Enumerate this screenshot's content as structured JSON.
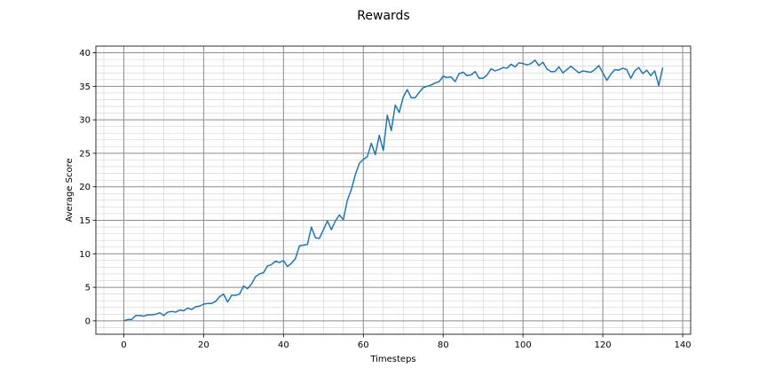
{
  "chart_data": {
    "type": "line",
    "title": "Rewards",
    "xlabel": "Timesteps",
    "ylabel": "Average Score",
    "xlim": [
      -7,
      142
    ],
    "ylim": [
      -2,
      41
    ],
    "x_ticks": [
      0,
      20,
      40,
      60,
      80,
      100,
      120,
      140
    ],
    "y_ticks": [
      0,
      5,
      10,
      15,
      20,
      25,
      30,
      35,
      40
    ],
    "grid": {
      "major": true,
      "minor": true
    },
    "series": [
      {
        "color": "#1f77b4",
        "x": [
          0,
          1,
          2,
          3,
          4,
          5,
          6,
          7,
          8,
          9,
          10,
          11,
          12,
          13,
          14,
          15,
          16,
          17,
          18,
          19,
          20,
          21,
          22,
          23,
          24,
          25,
          26,
          27,
          28,
          29,
          30,
          31,
          32,
          33,
          34,
          35,
          36,
          37,
          38,
          39,
          40,
          41,
          42,
          43,
          44,
          45,
          46,
          47,
          48,
          49,
          50,
          51,
          52,
          53,
          54,
          55,
          56,
          57,
          58,
          59,
          60,
          61,
          62,
          63,
          64,
          65,
          66,
          67,
          68,
          69,
          70,
          71,
          72,
          73,
          74,
          75,
          76,
          77,
          78,
          79,
          80,
          81,
          82,
          83,
          84,
          85,
          86,
          87,
          88,
          89,
          90,
          91,
          92,
          93,
          94,
          95,
          96,
          97,
          98,
          99,
          100,
          101,
          102,
          103,
          104,
          105,
          106,
          107,
          108,
          109,
          110,
          111,
          112,
          113,
          114,
          115,
          116,
          117,
          118,
          119,
          120,
          121,
          122,
          123,
          124,
          125,
          126,
          127,
          128,
          129,
          130,
          131,
          132,
          133,
          134,
          135
        ],
        "y": [
          0.0,
          0.2,
          0.2,
          0.8,
          0.8,
          0.7,
          0.9,
          0.9,
          1.0,
          1.2,
          0.8,
          1.3,
          1.4,
          1.3,
          1.6,
          1.5,
          1.9,
          1.7,
          2.1,
          2.2,
          2.5,
          2.6,
          2.6,
          2.9,
          3.6,
          4.0,
          2.8,
          3.8,
          3.8,
          4.0,
          5.2,
          4.8,
          5.5,
          6.6,
          7.0,
          7.2,
          8.2,
          8.4,
          8.9,
          8.7,
          9.0,
          8.1,
          8.6,
          9.3,
          11.2,
          11.3,
          11.4,
          14.0,
          12.4,
          12.3,
          13.6,
          14.9,
          13.6,
          14.9,
          15.8,
          15.1,
          18.0,
          19.6,
          21.8,
          23.5,
          24.1,
          24.5,
          26.5,
          24.8,
          27.7,
          25.4,
          30.7,
          28.4,
          32.2,
          31.1,
          33.4,
          34.5,
          33.3,
          33.3,
          34.1,
          34.8,
          35.0,
          35.2,
          35.5,
          35.7,
          36.5,
          36.3,
          36.4,
          35.7,
          36.9,
          37.1,
          36.6,
          36.7,
          37.2,
          36.2,
          36.2,
          36.7,
          37.6,
          37.3,
          37.5,
          37.8,
          37.7,
          38.3,
          37.9,
          38.5,
          38.4,
          38.2,
          38.4,
          38.9,
          38.1,
          38.6,
          37.6,
          37.2,
          37.2,
          37.9,
          37.0,
          37.5,
          38.0,
          37.5,
          37.0,
          37.3,
          37.2,
          37.1,
          37.5,
          38.1,
          37.0,
          35.9,
          36.8,
          37.5,
          37.4,
          37.7,
          37.5,
          36.2,
          37.3,
          37.8,
          36.9,
          37.4,
          36.6,
          37.3,
          35.1,
          37.8
        ]
      }
    ]
  }
}
